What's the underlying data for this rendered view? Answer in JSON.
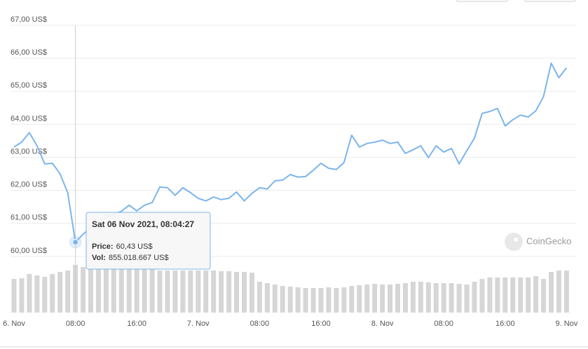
{
  "chart_data": {
    "type": "line",
    "categories": [
      "6. Nov",
      null,
      null,
      null,
      null,
      null,
      null,
      null,
      "08:00",
      null,
      null,
      null,
      null,
      null,
      null,
      null,
      "16:00",
      null,
      null,
      null,
      null,
      null,
      null,
      null,
      "7. Nov",
      null,
      null,
      null,
      null,
      null,
      null,
      null,
      "08:00",
      null,
      null,
      null,
      null,
      null,
      null,
      null,
      "16:00",
      null,
      null,
      null,
      null,
      null,
      null,
      null,
      "8. Nov",
      null,
      null,
      null,
      null,
      null,
      null,
      null,
      "08:00",
      null,
      null,
      null,
      null,
      null,
      null,
      null,
      "16:00",
      null,
      null,
      null,
      null,
      null,
      null,
      null,
      "9. Nov"
    ],
    "series": [
      {
        "name": "Price:",
        "color": "#7cb5ec",
        "values": [
          63.31,
          63.46,
          63.75,
          63.35,
          62.8,
          62.82,
          62.5,
          61.93,
          60.43,
          60.67,
          60.87,
          61.07,
          61.17,
          61.27,
          61.37,
          61.55,
          61.38,
          61.55,
          61.63,
          62.1,
          62.08,
          61.85,
          62.08,
          61.93,
          61.76,
          61.68,
          61.8,
          61.72,
          61.76,
          61.95,
          61.68,
          61.91,
          62.08,
          62.04,
          62.29,
          62.31,
          62.48,
          62.4,
          62.42,
          62.61,
          62.82,
          62.67,
          62.63,
          62.84,
          63.67,
          63.31,
          63.42,
          63.46,
          63.52,
          63.42,
          63.46,
          63.12,
          63.23,
          63.35,
          62.99,
          63.35,
          63.16,
          63.27,
          62.8,
          63.2,
          63.58,
          64.33,
          64.39,
          64.48,
          63.95,
          64.14,
          64.28,
          64.22,
          64.41,
          64.84,
          65.85,
          65.41,
          65.71
        ]
      },
      {
        "name": "Vol:",
        "color": "#d6d6d6",
        "axis": "y2",
        "values": [
          603000000,
          616000000,
          691000000,
          666000000,
          641000000,
          691000000,
          729000000,
          754000000,
          855018667,
          817000000,
          779000000,
          779000000,
          779000000,
          779000000,
          779000000,
          779000000,
          779000000,
          779000000,
          779000000,
          754000000,
          754000000,
          754000000,
          754000000,
          754000000,
          754000000,
          754000000,
          754000000,
          742000000,
          742000000,
          729000000,
          729000000,
          716000000,
          553000000,
          528000000,
          503000000,
          478000000,
          465000000,
          453000000,
          440000000,
          440000000,
          440000000,
          453000000,
          440000000,
          453000000,
          478000000,
          490000000,
          503000000,
          515000000,
          503000000,
          503000000,
          515000000,
          528000000,
          553000000,
          553000000,
          541000000,
          528000000,
          528000000,
          528000000,
          515000000,
          503000000,
          553000000,
          603000000,
          629000000,
          629000000,
          629000000,
          629000000,
          629000000,
          629000000,
          654000000,
          603000000,
          729000000,
          754000000,
          754000000
        ]
      }
    ],
    "ylim": [
      58.3,
      67
    ],
    "yticks": [
      {
        "value": 60,
        "label": "60,00 US$"
      },
      {
        "value": 61,
        "label": "61,00 US$"
      },
      {
        "value": 62,
        "label": "62,00 US$"
      },
      {
        "value": 63,
        "label": "63,00 US$"
      },
      {
        "value": 64,
        "label": "64,00 US$"
      },
      {
        "value": 65,
        "label": "65,00 US$"
      },
      {
        "value": 66,
        "label": "66,00 US$"
      },
      {
        "value": 67,
        "label": "67,00 US$"
      }
    ],
    "y2lim": [
      0,
      5154000000
    ],
    "grid": true,
    "tooltip": {
      "index": 8,
      "date": "Sat 06 Nov 2021, 08:04:27",
      "price": "60,43 US$",
      "vol": "855.018.667 US$"
    },
    "watermark": "CoinGecko"
  }
}
